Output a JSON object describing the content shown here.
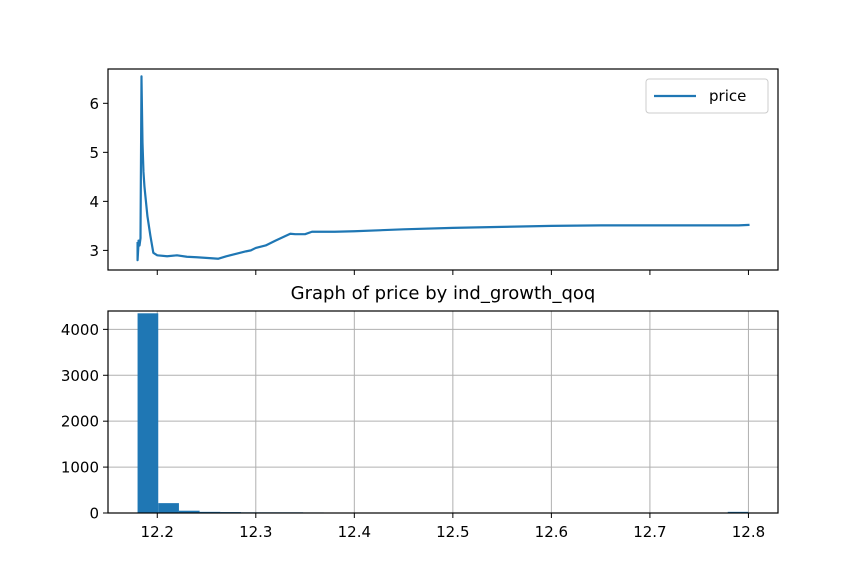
{
  "chart_data": [
    {
      "type": "line",
      "title": "",
      "xlabel": "",
      "ylabel": "",
      "ylim": [
        2.6,
        6.7
      ],
      "xlim": [
        12.15,
        12.83
      ],
      "y_ticks": [
        3,
        4,
        5,
        6
      ],
      "x_ticks": [
        12.2,
        12.3,
        12.4,
        12.5,
        12.6,
        12.7,
        12.8
      ],
      "x_tick_labels_shown": false,
      "grid": false,
      "legend": {
        "position": "top-right",
        "entries": [
          "price"
        ]
      },
      "series": [
        {
          "name": "price",
          "color": "#1f77b4",
          "x": [
            12.18,
            12.18,
            12.181,
            12.181,
            12.182,
            12.183,
            12.183,
            12.184,
            12.184,
            12.185,
            12.186,
            12.187,
            12.188,
            12.19,
            12.193,
            12.196,
            12.2,
            12.21,
            12.22,
            12.23,
            12.24,
            12.255,
            12.262,
            12.27,
            12.28,
            12.29,
            12.295,
            12.3,
            12.31,
            12.32,
            12.335,
            12.34,
            12.35,
            12.357,
            12.365,
            12.37,
            12.38,
            12.4,
            12.45,
            12.5,
            12.55,
            12.6,
            12.65,
            12.7,
            12.75,
            12.79,
            12.8
          ],
          "y": [
            3.15,
            2.8,
            3.15,
            3.2,
            3.1,
            3.25,
            3.3,
            6.55,
            6.5,
            5.2,
            4.6,
            4.3,
            4.1,
            3.7,
            3.3,
            2.95,
            2.9,
            2.88,
            2.9,
            2.87,
            2.86,
            2.84,
            2.83,
            2.88,
            2.93,
            2.98,
            3.0,
            3.05,
            3.1,
            3.2,
            3.34,
            3.33,
            3.33,
            3.38,
            3.38,
            3.38,
            3.38,
            3.39,
            3.43,
            3.46,
            3.48,
            3.5,
            3.51,
            3.51,
            3.51,
            3.51,
            3.52
          ]
        }
      ]
    },
    {
      "type": "bar",
      "title": "Graph of price by ind_growth_qoq",
      "xlabel": "",
      "ylabel": "",
      "ylim": [
        0,
        4400
      ],
      "xlim": [
        12.15,
        12.83
      ],
      "y_ticks": [
        0,
        1000,
        2000,
        3000,
        4000
      ],
      "x_ticks": [
        12.2,
        12.3,
        12.4,
        12.5,
        12.6,
        12.7,
        12.8
      ],
      "grid": true,
      "bar_color": "#1f77b4",
      "bins": [
        {
          "x0": 12.18,
          "x1": 12.201,
          "count": 4350
        },
        {
          "x0": 12.201,
          "x1": 12.222,
          "count": 215
        },
        {
          "x0": 12.222,
          "x1": 12.243,
          "count": 50
        },
        {
          "x0": 12.243,
          "x1": 12.264,
          "count": 25
        },
        {
          "x0": 12.264,
          "x1": 12.285,
          "count": 20
        },
        {
          "x0": 12.285,
          "x1": 12.306,
          "count": 15
        },
        {
          "x0": 12.306,
          "x1": 12.327,
          "count": 15
        },
        {
          "x0": 12.327,
          "x1": 12.348,
          "count": 15
        },
        {
          "x0": 12.348,
          "x1": 12.369,
          "count": 12
        },
        {
          "x0": 12.369,
          "x1": 12.39,
          "count": 10
        },
        {
          "x0": 12.779,
          "x1": 12.8,
          "count": 25
        }
      ]
    }
  ]
}
